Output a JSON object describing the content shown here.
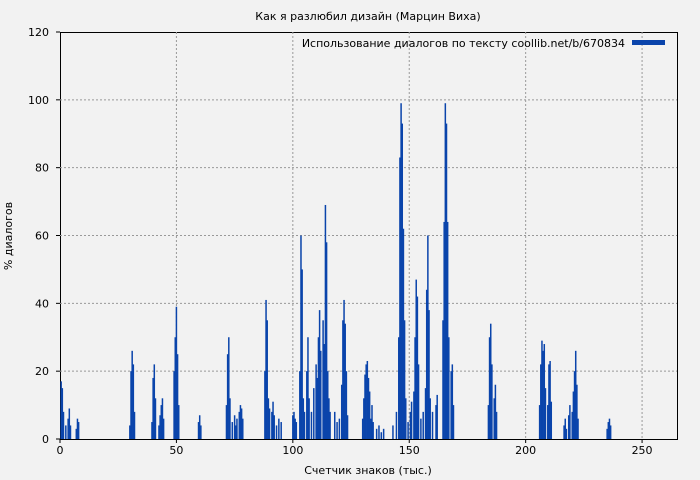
{
  "chart_data": {
    "type": "bar",
    "title": "Как я разлюбил дизайн (Марцин Виха)",
    "xlabel": "Счетчик знаков (тыс.)",
    "ylabel": "% диалогов",
    "xlim": [
      0,
      265
    ],
    "ylim": [
      0,
      120
    ],
    "x_ticks": [
      "0",
      "50",
      "100",
      "150",
      "200",
      "250"
    ],
    "y_ticks": [
      "0",
      "20",
      "40",
      "60",
      "80",
      "100",
      "120"
    ],
    "grid": true,
    "legend_position": "top-right",
    "series": [
      {
        "name": "Использование диалогов по тексту coollib.net/b/670834",
        "color": "#0a44ab",
        "points": [
          [
            0.5,
            17
          ],
          [
            1.0,
            15
          ],
          [
            1.5,
            8
          ],
          [
            2.5,
            4
          ],
          [
            3.5,
            6
          ],
          [
            4.0,
            9
          ],
          [
            4.5,
            4
          ],
          [
            7.0,
            3
          ],
          [
            7.5,
            6
          ],
          [
            8.0,
            5
          ],
          [
            30.0,
            4
          ],
          [
            30.5,
            20
          ],
          [
            31.0,
            26
          ],
          [
            31.5,
            22
          ],
          [
            32.0,
            8
          ],
          [
            39.5,
            5
          ],
          [
            40.0,
            18
          ],
          [
            40.5,
            22
          ],
          [
            41.0,
            12
          ],
          [
            42.5,
            4
          ],
          [
            43.0,
            7
          ],
          [
            43.5,
            10
          ],
          [
            44.0,
            12
          ],
          [
            44.5,
            6
          ],
          [
            49.0,
            20
          ],
          [
            49.5,
            30
          ],
          [
            50.0,
            39
          ],
          [
            50.5,
            25
          ],
          [
            51.0,
            10
          ],
          [
            59.5,
            5
          ],
          [
            60.0,
            7
          ],
          [
            60.5,
            4
          ],
          [
            71.5,
            10
          ],
          [
            72.0,
            25
          ],
          [
            72.5,
            30
          ],
          [
            73.0,
            12
          ],
          [
            74.0,
            5
          ],
          [
            75.0,
            7
          ],
          [
            75.5,
            4
          ],
          [
            76.0,
            6
          ],
          [
            77.0,
            8
          ],
          [
            77.5,
            10
          ],
          [
            78.0,
            9
          ],
          [
            78.5,
            6
          ],
          [
            88.0,
            20
          ],
          [
            88.5,
            41
          ],
          [
            89.0,
            35
          ],
          [
            89.5,
            12
          ],
          [
            90.0,
            9
          ],
          [
            91.0,
            8
          ],
          [
            91.5,
            11
          ],
          [
            92.0,
            7
          ],
          [
            93.0,
            4
          ],
          [
            94.0,
            6
          ],
          [
            95.0,
            5
          ],
          [
            100.0,
            7
          ],
          [
            100.5,
            8
          ],
          [
            101.0,
            6
          ],
          [
            101.5,
            5
          ],
          [
            103.0,
            20
          ],
          [
            103.5,
            60
          ],
          [
            104.0,
            50
          ],
          [
            104.5,
            12
          ],
          [
            105.0,
            8
          ],
          [
            106.0,
            20
          ],
          [
            106.5,
            30
          ],
          [
            107.0,
            12
          ],
          [
            108.0,
            8
          ],
          [
            109.0,
            15
          ],
          [
            110.0,
            22
          ],
          [
            110.5,
            18
          ],
          [
            111.0,
            30
          ],
          [
            111.5,
            38
          ],
          [
            112.0,
            26
          ],
          [
            113.0,
            35
          ],
          [
            113.5,
            28
          ],
          [
            114.0,
            69
          ],
          [
            114.5,
            58
          ],
          [
            115.0,
            20
          ],
          [
            115.5,
            12
          ],
          [
            116.0,
            8
          ],
          [
            118.0,
            8
          ],
          [
            119.0,
            5
          ],
          [
            120.0,
            6
          ],
          [
            121.0,
            16
          ],
          [
            121.5,
            35
          ],
          [
            122.0,
            41
          ],
          [
            122.5,
            34
          ],
          [
            123.0,
            20
          ],
          [
            123.5,
            7
          ],
          [
            130.0,
            6
          ],
          [
            130.5,
            12
          ],
          [
            131.0,
            19
          ],
          [
            131.5,
            22
          ],
          [
            132.0,
            23
          ],
          [
            132.5,
            18
          ],
          [
            133.0,
            14
          ],
          [
            133.5,
            6
          ],
          [
            134.0,
            10
          ],
          [
            134.5,
            5
          ],
          [
            136.0,
            3
          ],
          [
            137.0,
            4
          ],
          [
            138.0,
            2
          ],
          [
            139.0,
            3
          ],
          [
            143.0,
            4
          ],
          [
            144.5,
            8
          ],
          [
            145.5,
            30
          ],
          [
            146.0,
            83
          ],
          [
            146.5,
            99
          ],
          [
            147.0,
            93
          ],
          [
            147.5,
            62
          ],
          [
            148.0,
            35
          ],
          [
            148.5,
            12
          ],
          [
            149.5,
            5
          ],
          [
            150.5,
            8
          ],
          [
            151.0,
            11
          ],
          [
            152.0,
            14
          ],
          [
            152.5,
            30
          ],
          [
            153.0,
            47
          ],
          [
            153.5,
            42
          ],
          [
            154.0,
            22
          ],
          [
            155.0,
            6
          ],
          [
            156.0,
            8
          ],
          [
            157.0,
            15
          ],
          [
            157.5,
            44
          ],
          [
            158.0,
            60
          ],
          [
            158.5,
            38
          ],
          [
            159.0,
            12
          ],
          [
            160.0,
            8
          ],
          [
            161.5,
            10
          ],
          [
            162.0,
            13
          ],
          [
            164.5,
            35
          ],
          [
            165.0,
            64
          ],
          [
            165.5,
            99
          ],
          [
            166.0,
            93
          ],
          [
            166.5,
            64
          ],
          [
            167.0,
            30
          ],
          [
            168.0,
            20
          ],
          [
            168.5,
            22
          ],
          [
            169.0,
            10
          ],
          [
            184.0,
            10
          ],
          [
            184.5,
            30
          ],
          [
            185.0,
            34
          ],
          [
            185.5,
            22
          ],
          [
            186.5,
            12
          ],
          [
            187.0,
            16
          ],
          [
            187.5,
            8
          ],
          [
            206.0,
            10
          ],
          [
            206.5,
            22
          ],
          [
            207.0,
            29
          ],
          [
            207.5,
            26
          ],
          [
            208.0,
            28
          ],
          [
            208.5,
            15
          ],
          [
            209.5,
            10
          ],
          [
            210.0,
            22
          ],
          [
            210.5,
            23
          ],
          [
            211.0,
            11
          ],
          [
            216.5,
            4
          ],
          [
            217.0,
            6
          ],
          [
            217.5,
            3
          ],
          [
            218.5,
            7
          ],
          [
            219.0,
            10
          ],
          [
            220.0,
            8
          ],
          [
            220.5,
            14
          ],
          [
            221.0,
            20
          ],
          [
            221.5,
            26
          ],
          [
            222.0,
            16
          ],
          [
            222.5,
            6
          ],
          [
            235.0,
            3
          ],
          [
            235.5,
            5
          ],
          [
            236.0,
            6
          ],
          [
            236.5,
            4
          ]
        ]
      }
    ]
  }
}
